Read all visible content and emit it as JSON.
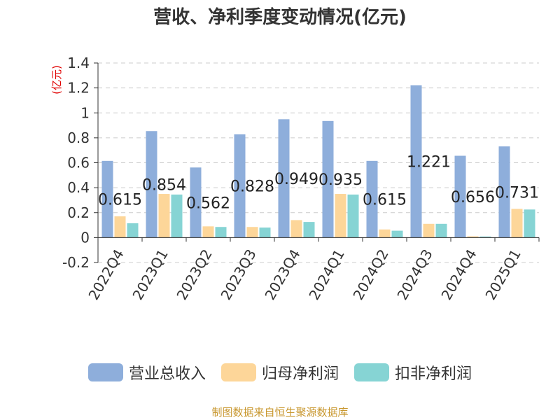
{
  "chart_data": {
    "type": "bar",
    "title": "营收、净利季度变动情况(亿元)",
    "ylabel": "(亿元)",
    "ylim": [
      -0.2,
      1.4
    ],
    "yticks": [
      "-0.2",
      "0",
      "0.2",
      "0.4",
      "0.6",
      "0.8",
      "1",
      "1.2",
      "1.4"
    ],
    "grid": true,
    "legend_position": "bottom",
    "categories": [
      "2022Q4",
      "2023Q1",
      "2023Q2",
      "2023Q3",
      "2023Q4",
      "2024Q1",
      "2024Q2",
      "2024Q3",
      "2024Q4",
      "2025Q1"
    ],
    "series": [
      {
        "name": "营业总收入",
        "color": "#8eaedb",
        "values": [
          0.615,
          0.854,
          0.562,
          0.828,
          0.949,
          0.935,
          0.615,
          1.221,
          0.656,
          0.731
        ]
      },
      {
        "name": "归母净利润",
        "color": "#fdd699",
        "values": [
          0.17,
          0.35,
          0.09,
          0.085,
          0.14,
          0.35,
          0.065,
          0.11,
          0.01,
          0.23
        ]
      },
      {
        "name": "扣非净利润",
        "color": "#86d4d4",
        "values": [
          0.115,
          0.345,
          0.085,
          0.08,
          0.125,
          0.345,
          0.055,
          0.11,
          0.0,
          0.225
        ]
      }
    ],
    "data_labels": [
      "0.615",
      "0.854",
      "0.562",
      "0.828",
      "0.949",
      "0.935",
      "0.615",
      "1.221",
      "0.656",
      "0.731"
    ]
  },
  "source": "制图数据来自恒生聚源数据库"
}
